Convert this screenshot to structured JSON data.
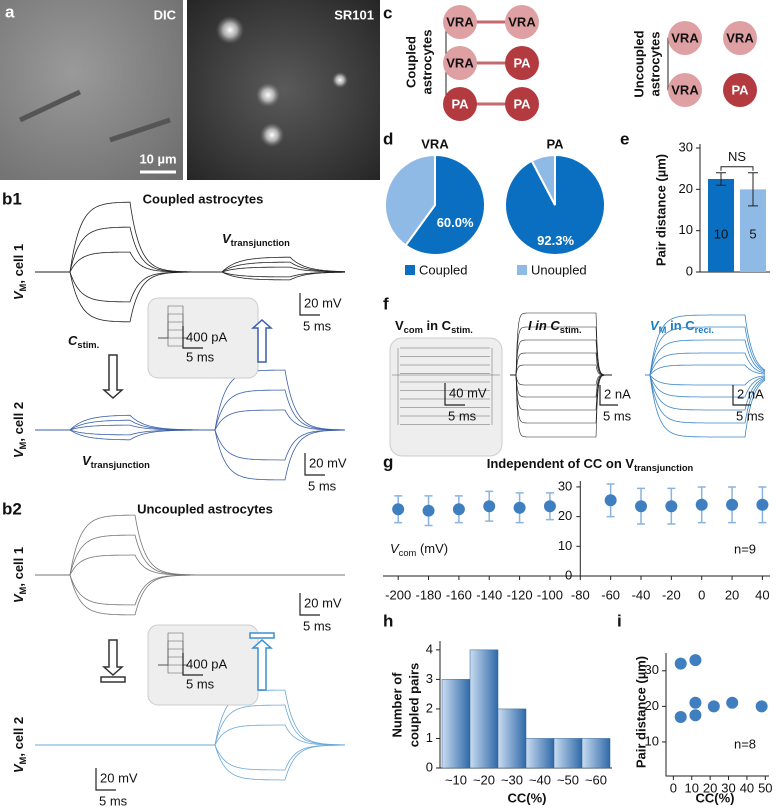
{
  "panels": {
    "a": {
      "label": "a",
      "left": "DIC",
      "right": "SR101",
      "scale": "10 µm"
    },
    "b1": {
      "label": "b1",
      "title": "Coupled astrocytes",
      "cell1": [
        "V",
        "M",
        ", cell 1"
      ],
      "cell2": [
        "V",
        "M",
        ", cell 2"
      ],
      "vt1": [
        "V",
        "transjunction"
      ],
      "vt2": [
        "V",
        "transjunction"
      ],
      "cstim": [
        "C",
        "stim."
      ],
      "scale1": [
        "20 mV",
        "5 ms"
      ],
      "inset": [
        "400 pA",
        "5 ms"
      ],
      "scale2": [
        "20 mV",
        "5 ms"
      ]
    },
    "b2": {
      "label": "b2",
      "title": "Uncoupled  astrocytes",
      "cell1": [
        "V",
        "M",
        ", cell 1"
      ],
      "cell2": [
        "V",
        "M",
        ", cell 2"
      ],
      "scale1": [
        "20 mV",
        "5 ms"
      ],
      "inset": [
        "400 pA",
        "5 ms"
      ],
      "scale2": [
        "20 mV",
        "5 ms"
      ]
    },
    "c": {
      "label": "c",
      "coupled": [
        "Coupled",
        "astrocytes"
      ],
      "uncoupled": [
        "Uncoupled",
        "astrocytes"
      ],
      "pairs": [
        [
          "VRA",
          "VRA"
        ],
        [
          "VRA",
          "PA"
        ],
        [
          "PA",
          "PA"
        ]
      ],
      "unpairs": [
        [
          "VRA",
          "VRA"
        ],
        [
          "VRA",
          "PA"
        ]
      ]
    },
    "f": {
      "label": "f",
      "t1": [
        "V",
        "com",
        " in C",
        "stim."
      ],
      "t2": [
        "I in C",
        "stim."
      ],
      "t3": [
        "V",
        "M",
        " in C",
        "reci."
      ],
      "scale1": [
        "40 mV",
        "5 ms"
      ],
      "scale2": [
        "2 nA",
        "5 ms"
      ],
      "scale3": [
        "2 nA",
        "5 ms"
      ]
    }
  },
  "chart_data": [
    {
      "type": "pie",
      "panel": "d",
      "title": "VRA",
      "categories": [
        "Coupled",
        "Unoupled"
      ],
      "values": [
        60.0,
        40.0
      ],
      "value_labels": [
        "60.0%",
        null
      ],
      "colors": [
        "#0b6fc1",
        "#8fbae5"
      ]
    },
    {
      "type": "pie",
      "title": "PA",
      "categories": [
        "Coupled",
        "Unoupled"
      ],
      "values": [
        92.3,
        7.7
      ],
      "value_labels": [
        "92.3%",
        null
      ],
      "colors": [
        "#0b6fc1",
        "#8fbae5"
      ]
    },
    {
      "type": "bar",
      "panel": "e",
      "y_label": "Pair distance (µm)",
      "categories": [
        null,
        null
      ],
      "values": [
        22.5,
        20
      ],
      "errors": [
        1.5,
        4
      ],
      "n_labels": [
        "10",
        "5"
      ],
      "annotation": "NS",
      "colors": [
        "#0b6fc1",
        "#8fbae5"
      ],
      "ylim": [
        0,
        30
      ],
      "yticks": [
        0,
        10,
        20,
        30
      ]
    },
    {
      "type": "scatter",
      "panel": "g",
      "title": [
        "Independent of CC on V",
        "transjunction"
      ],
      "x_label": [
        "V",
        "com",
        " (mV)"
      ],
      "annotation": "n=9",
      "x": [
        -200,
        -180,
        -160,
        -140,
        -120,
        -100,
        -60,
        -40,
        -20,
        0,
        20,
        40
      ],
      "values": [
        22.5,
        22,
        22.5,
        23.5,
        23,
        23.5,
        25.5,
        23.5,
        23.5,
        24,
        24,
        24
      ],
      "errors": [
        4.5,
        5,
        4.5,
        5,
        5,
        4.5,
        5.5,
        6,
        6,
        6,
        6,
        6
      ],
      "color": "#3f7fc0",
      "error_color": "#8ab4df",
      "xlim": [
        -210,
        45
      ],
      "ylim": [
        0,
        32
      ],
      "xticks": [
        -200,
        -180,
        -160,
        -140,
        -120,
        -100,
        -80,
        -60,
        -40,
        -20,
        0,
        20,
        40
      ],
      "yticks": [
        0,
        10,
        20,
        30
      ],
      "y_axis_at": -80
    },
    {
      "type": "bar",
      "panel": "h",
      "y_label": [
        "Number of",
        "coupled pairs"
      ],
      "x_label": "CC(%)",
      "categories": [
        "~10",
        "~20",
        "~30",
        "~40",
        "~50",
        "~60"
      ],
      "values": [
        3,
        4,
        2,
        1,
        1,
        1
      ],
      "colors": [
        "#c9dcf0",
        "#2f69a8"
      ],
      "ylim": [
        0,
        4.3
      ],
      "yticks": [
        0,
        1,
        2,
        3,
        4
      ]
    },
    {
      "type": "scatter",
      "panel": "i",
      "y_label": "Pair distance (µm)",
      "x_label": "CC(%)",
      "annotation": "n=8",
      "x": [
        4,
        4,
        12,
        12,
        12,
        22,
        32,
        48
      ],
      "values": [
        32,
        17,
        33,
        21,
        17.5,
        20,
        21,
        20
      ],
      "color": "#3f7fc0",
      "xlim": [
        -4,
        52
      ],
      "ylim": [
        0,
        35
      ],
      "xticks": [
        0,
        10,
        20,
        30,
        40,
        50
      ],
      "yticks": [
        10,
        20,
        30
      ]
    }
  ]
}
